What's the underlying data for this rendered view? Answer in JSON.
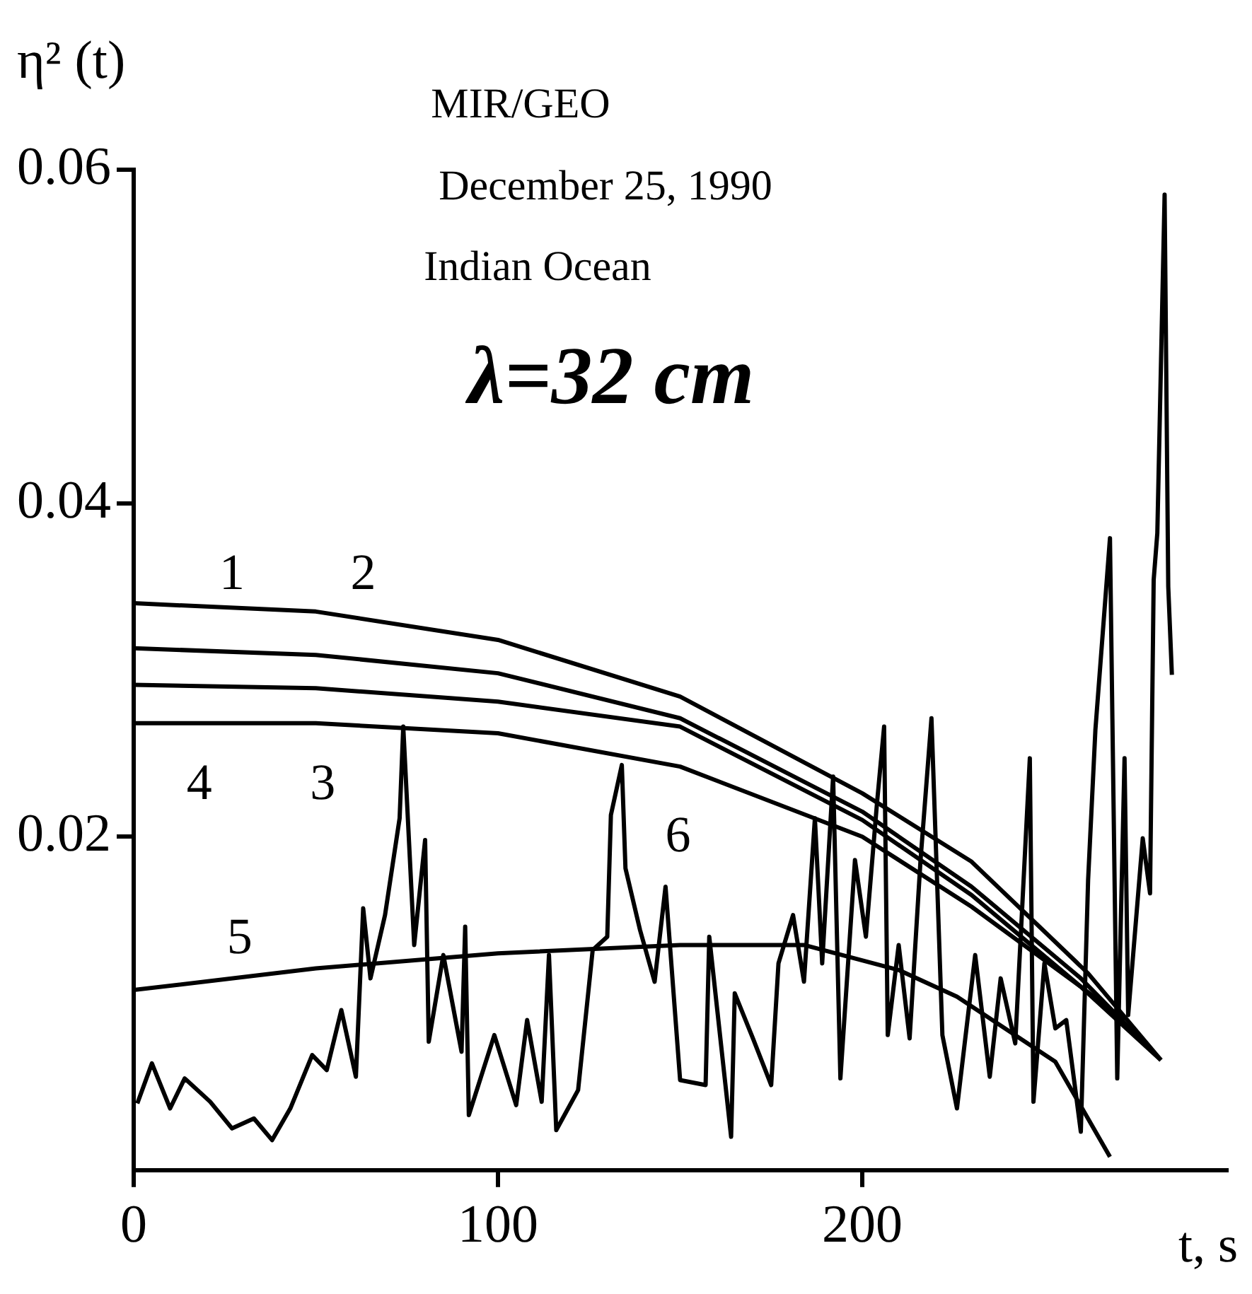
{
  "chart_data": {
    "type": "line",
    "title": "MIR/GEO",
    "subtitle": "December 25, 1990",
    "ylabel": "η² (t)",
    "xlabel": "t, s",
    "xlim": [
      0,
      300
    ],
    "ylim": [
      0,
      0.06
    ],
    "xticks": [
      0,
      100,
      200
    ],
    "yticks": [
      0.02,
      0.04,
      0.06
    ],
    "grid": false,
    "legend": false,
    "marker": "none",
    "line_style": "solid",
    "annotations": [
      "Indian Ocean",
      "λ=32 cm",
      "1",
      "2",
      "4",
      "3",
      "5",
      "6"
    ],
    "series": [
      {
        "color": "#000000",
        "x": [
          0,
          50,
          100,
          150,
          200,
          230,
          262,
          282
        ],
        "values": [
          0.034,
          0.0335,
          0.0318,
          0.0284,
          0.0226,
          0.0185,
          0.0118,
          0.0066
        ]
      },
      {
        "color": "#000000",
        "x": [
          0,
          50,
          100,
          150,
          200,
          230,
          260,
          282
        ],
        "values": [
          0.0313,
          0.0309,
          0.0298,
          0.0271,
          0.0215,
          0.017,
          0.0115,
          0.0066
        ]
      },
      {
        "color": "#000000",
        "x": [
          0,
          50,
          100,
          150,
          200,
          230,
          260,
          272
        ],
        "values": [
          0.0268,
          0.0268,
          0.0262,
          0.0242,
          0.02,
          0.0158,
          0.011,
          0.009
        ]
      },
      {
        "color": "#000000",
        "x": [
          0,
          50,
          100,
          150,
          200,
          230,
          260,
          282
        ],
        "values": [
          0.0291,
          0.0289,
          0.0281,
          0.0266,
          0.021,
          0.0165,
          0.011,
          0.0066
        ]
      },
      {
        "color": "#000000",
        "x": [
          0,
          50,
          100,
          150,
          184,
          210,
          226,
          253,
          268
        ],
        "values": [
          0.0108,
          0.0121,
          0.013,
          0.0135,
          0.0135,
          0.012,
          0.0104,
          0.0065,
          0.0008
        ]
      },
      {
        "color": "#000000",
        "x": [
          1,
          5,
          10,
          14,
          21,
          27,
          33,
          38,
          43,
          49,
          53,
          57,
          61,
          63,
          65,
          69,
          73,
          74,
          77,
          80,
          81,
          85,
          90,
          91,
          92,
          99,
          105,
          108,
          112,
          114,
          116,
          122,
          126,
          130,
          131,
          134,
          135,
          139,
          143,
          146,
          150,
          157,
          158,
          164,
          165,
          170,
          175,
          177,
          181,
          184,
          187,
          189,
          192,
          194,
          198,
          201,
          204,
          206,
          207,
          210,
          213,
          216,
          219,
          222,
          226,
          231,
          235,
          238,
          242,
          246,
          247,
          250,
          253,
          256,
          260,
          262,
          264,
          268,
          270,
          272,
          273,
          277,
          279,
          280,
          281,
          283,
          284,
          285
        ],
        "values": [
          0.004,
          0.0064,
          0.0037,
          0.0055,
          0.0041,
          0.0025,
          0.0031,
          0.0018,
          0.0037,
          0.0069,
          0.006,
          0.0096,
          0.0056,
          0.0157,
          0.0115,
          0.0153,
          0.0211,
          0.0266,
          0.0135,
          0.0198,
          0.0077,
          0.0129,
          0.0071,
          0.0146,
          0.0033,
          0.0081,
          0.0039,
          0.009,
          0.0041,
          0.0129,
          0.0024,
          0.0048,
          0.0132,
          0.014,
          0.0213,
          0.0243,
          0.0181,
          0.0144,
          0.0113,
          0.017,
          0.0054,
          0.0051,
          0.014,
          0.002,
          0.0106,
          0.0079,
          0.0051,
          0.0124,
          0.0153,
          0.0113,
          0.0211,
          0.0124,
          0.0236,
          0.0055,
          0.0186,
          0.014,
          0.0219,
          0.0266,
          0.0081,
          0.0135,
          0.0079,
          0.0186,
          0.0271,
          0.0081,
          0.0037,
          0.0129,
          0.0056,
          0.0115,
          0.0076,
          0.0247,
          0.0041,
          0.0124,
          0.0085,
          0.009,
          0.0023,
          0.0174,
          0.0264,
          0.0379,
          0.0055,
          0.0247,
          0.0093,
          0.0199,
          0.0166,
          0.0354,
          0.0382,
          0.0585,
          0.035,
          0.0297
        ]
      }
    ]
  }
}
